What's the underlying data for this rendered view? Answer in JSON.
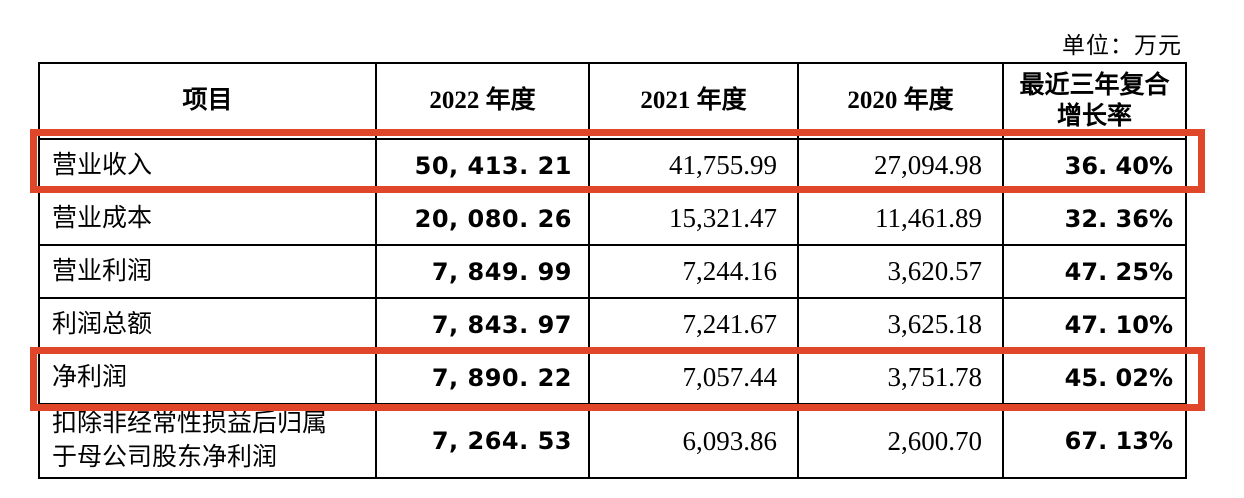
{
  "unit_label": "单位：万元",
  "highlight_color": "#e0472a",
  "table": {
    "columns": [
      "项目",
      "2022 年度",
      "2021 年度",
      "2020 年度",
      "最近三年复合增长率"
    ],
    "rows": [
      {
        "label": "营业收入",
        "y2022": "50, 413. 21",
        "y2021": "41,755.99",
        "y2020": "27,094.98",
        "cagr": "36. 40%",
        "highlighted": true
      },
      {
        "label": "营业成本",
        "y2022": "20, 080. 26",
        "y2021": "15,321.47",
        "y2020": "11,461.89",
        "cagr": "32. 36%",
        "highlighted": false
      },
      {
        "label": "营业利润",
        "y2022": "7, 849. 99",
        "y2021": "7,244.16",
        "y2020": "3,620.57",
        "cagr": "47. 25%",
        "highlighted": false
      },
      {
        "label": "利润总额",
        "y2022": "7, 843. 97",
        "y2021": "7,241.67",
        "y2020": "3,625.18",
        "cagr": "47. 10%",
        "highlighted": false
      },
      {
        "label": "净利润",
        "y2022": "7, 890. 22",
        "y2021": "7,057.44",
        "y2020": "3,751.78",
        "cagr": "45. 02%",
        "highlighted": true
      },
      {
        "label": "扣除非经常性损益后归属于母公司股东净利润",
        "y2022": "7, 264. 53",
        "y2021": "6,093.86",
        "y2020": "2,600.70",
        "cagr": "67. 13%",
        "highlighted": false
      }
    ]
  }
}
